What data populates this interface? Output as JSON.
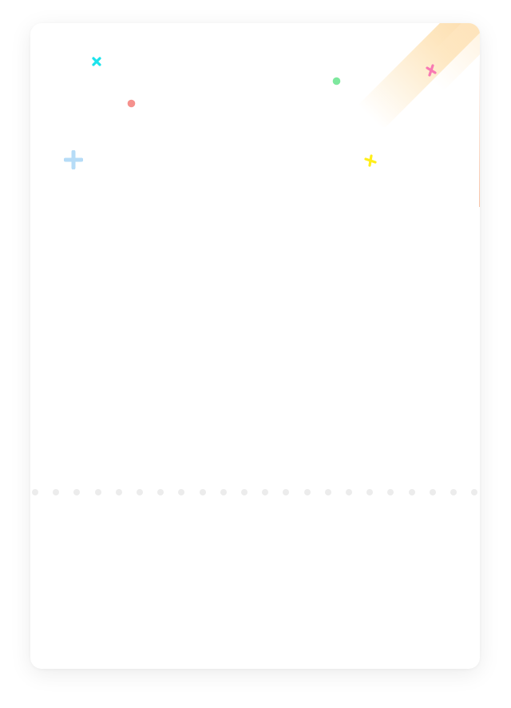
{
  "screen": {
    "background": "#ffffff",
    "card_background": "#ffffff"
  },
  "decorations": {
    "ribbon_colors": [
      "#fde2b4",
      "#ffeccd"
    ],
    "edge_line_color": "#f6aa82",
    "confetti": [
      {
        "name": "cyan-cross-icon",
        "shape": "x-cross",
        "color": "#1be3ec"
      },
      {
        "name": "red-dot-icon",
        "shape": "dot",
        "color": "#f5918d"
      },
      {
        "name": "blue-plus-icon",
        "shape": "plus",
        "color": "#b6dcf7"
      },
      {
        "name": "green-dot-icon",
        "shape": "dot",
        "color": "#7ee89e"
      },
      {
        "name": "pink-cross-icon",
        "shape": "x-cross",
        "color": "#f879b3"
      },
      {
        "name": "yellow-cross-icon",
        "shape": "x-cross",
        "color": "#ffee1a"
      }
    ]
  },
  "separator": {
    "style": "dotted",
    "dot_color": "#ececec",
    "dot_count": 22
  }
}
